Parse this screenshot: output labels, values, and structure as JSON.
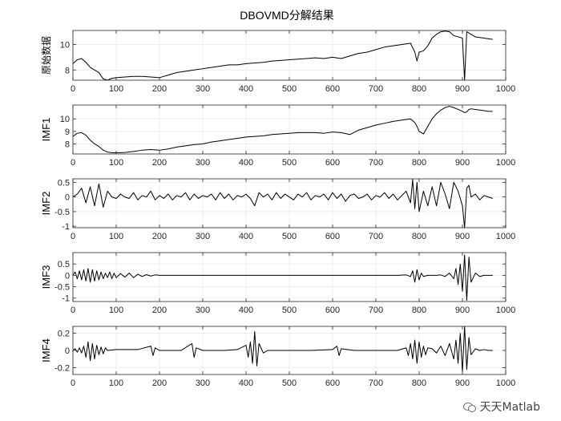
{
  "figure": {
    "title": "DBOVMD分解结果"
  },
  "watermark": {
    "text": "天天Matlab"
  },
  "chart_data": [
    {
      "type": "line",
      "ylabel": "原始数据",
      "xlim": [
        0,
        1000
      ],
      "ylim": [
        7.2,
        11.1
      ],
      "yticks": [
        8,
        10
      ],
      "xticks": [
        0,
        100,
        200,
        300,
        400,
        500,
        600,
        700,
        800,
        900,
        1000
      ],
      "grid": true,
      "color": "#000000",
      "x": [
        0,
        10,
        20,
        30,
        40,
        50,
        60,
        70,
        80,
        90,
        100,
        120,
        140,
        160,
        180,
        200,
        220,
        240,
        260,
        280,
        300,
        320,
        340,
        360,
        380,
        400,
        420,
        440,
        460,
        480,
        500,
        520,
        540,
        560,
        580,
        600,
        620,
        640,
        660,
        680,
        700,
        720,
        740,
        760,
        780,
        790,
        795,
        800,
        810,
        820,
        830,
        840,
        850,
        860,
        870,
        880,
        890,
        900,
        905,
        910,
        915,
        920,
        930,
        940,
        950,
        960,
        970
      ],
      "y": [
        8.5,
        8.8,
        8.9,
        8.6,
        8.2,
        8.0,
        7.8,
        7.3,
        7.2,
        7.35,
        7.4,
        7.45,
        7.5,
        7.5,
        7.45,
        7.4,
        7.6,
        7.8,
        7.9,
        8.0,
        8.1,
        8.2,
        8.3,
        8.4,
        8.4,
        8.5,
        8.55,
        8.6,
        8.7,
        8.75,
        8.8,
        8.85,
        8.9,
        8.95,
        8.9,
        9.0,
        8.9,
        9.1,
        9.3,
        9.4,
        9.6,
        9.8,
        9.9,
        10.0,
        10.1,
        9.4,
        8.7,
        9.4,
        9.5,
        9.9,
        10.5,
        10.8,
        11.0,
        11.05,
        11.0,
        10.7,
        10.6,
        10.5,
        7.2,
        11.0,
        10.9,
        10.8,
        10.6,
        10.55,
        10.5,
        10.45,
        10.4
      ]
    },
    {
      "type": "line",
      "ylabel": "IMF1",
      "xlim": [
        0,
        1000
      ],
      "ylim": [
        7.2,
        11.1
      ],
      "yticks": [
        8,
        9,
        10
      ],
      "xticks": [
        0,
        100,
        200,
        300,
        400,
        500,
        600,
        700,
        800,
        900,
        1000
      ],
      "grid": true,
      "color": "#000000",
      "x": [
        0,
        10,
        20,
        30,
        40,
        50,
        60,
        70,
        80,
        90,
        100,
        120,
        140,
        160,
        180,
        200,
        220,
        240,
        260,
        280,
        300,
        320,
        340,
        360,
        380,
        400,
        420,
        440,
        460,
        480,
        500,
        520,
        540,
        560,
        580,
        600,
        620,
        640,
        660,
        680,
        700,
        720,
        740,
        760,
        780,
        790,
        795,
        800,
        810,
        820,
        830,
        840,
        850,
        860,
        870,
        880,
        890,
        900,
        905,
        910,
        915,
        920,
        930,
        940,
        950,
        960,
        970
      ],
      "y": [
        8.6,
        8.85,
        8.9,
        8.7,
        8.3,
        8.0,
        7.8,
        7.5,
        7.35,
        7.3,
        7.3,
        7.32,
        7.4,
        7.5,
        7.55,
        7.5,
        7.6,
        7.75,
        7.85,
        7.95,
        8.0,
        8.15,
        8.25,
        8.35,
        8.45,
        8.55,
        8.6,
        8.65,
        8.75,
        8.8,
        8.85,
        8.9,
        8.9,
        8.9,
        8.85,
        8.95,
        8.9,
        8.75,
        9.1,
        9.3,
        9.5,
        9.65,
        9.8,
        9.9,
        10.0,
        9.7,
        9.4,
        9.0,
        8.8,
        9.4,
        10.0,
        10.4,
        10.7,
        10.9,
        11.0,
        10.9,
        10.75,
        10.6,
        10.5,
        10.55,
        10.75,
        10.8,
        10.75,
        10.7,
        10.65,
        10.6,
        10.6
      ]
    },
    {
      "type": "line",
      "ylabel": "IMF2",
      "xlim": [
        0,
        1000
      ],
      "ylim": [
        -1.05,
        0.62
      ],
      "yticks": [
        -1,
        -0.5,
        0,
        0.5
      ],
      "xticks": [
        0,
        100,
        200,
        300,
        400,
        500,
        600,
        700,
        800,
        900,
        1000
      ],
      "grid": true,
      "color": "#000000",
      "x": [
        0,
        10,
        20,
        30,
        40,
        50,
        60,
        70,
        80,
        90,
        100,
        110,
        120,
        130,
        140,
        150,
        160,
        170,
        180,
        190,
        200,
        210,
        220,
        230,
        240,
        250,
        260,
        270,
        280,
        290,
        300,
        310,
        320,
        330,
        340,
        350,
        360,
        370,
        380,
        390,
        400,
        410,
        420,
        430,
        440,
        450,
        460,
        470,
        480,
        490,
        500,
        510,
        520,
        530,
        540,
        550,
        560,
        570,
        580,
        590,
        600,
        610,
        620,
        630,
        640,
        650,
        660,
        670,
        680,
        690,
        700,
        710,
        720,
        730,
        740,
        750,
        760,
        770,
        780,
        785,
        790,
        795,
        800,
        810,
        820,
        830,
        840,
        850,
        860,
        870,
        880,
        890,
        900,
        905,
        910,
        915,
        920,
        930,
        940,
        950,
        960,
        970
      ],
      "y": [
        0,
        0.1,
        0.3,
        -0.2,
        0.35,
        -0.3,
        0.45,
        -0.35,
        0.2,
        0,
        -0.05,
        0.1,
        0,
        -0.05,
        0.15,
        -0.1,
        0.05,
        0,
        0.2,
        -0.1,
        0.05,
        -0.05,
        0.1,
        -0.1,
        0.05,
        0,
        0.15,
        -0.1,
        0.1,
        -0.05,
        0.05,
        0,
        0.1,
        -0.1,
        0.15,
        -0.05,
        0.1,
        -0.1,
        0.05,
        0,
        0.1,
        -0.05,
        -0.3,
        0.15,
        0,
        0.1,
        -0.1,
        0.15,
        -0.05,
        0.1,
        0,
        -0.1,
        0.1,
        0,
        0.15,
        -0.1,
        0.05,
        0,
        0.1,
        -0.1,
        0.15,
        -0.05,
        0.1,
        -0.15,
        0.05,
        0.1,
        -0.05,
        0,
        0.1,
        -0.1,
        0.05,
        0,
        0.15,
        -0.05,
        0.1,
        -0.1,
        0.05,
        0.2,
        -0.2,
        0.6,
        -0.4,
        0.5,
        -0.5,
        0.2,
        -0.3,
        0.35,
        -0.3,
        0.5,
        0.1,
        -0.4,
        0.5,
        0.2,
        -0.3,
        -1.05,
        0.3,
        0.4,
        0,
        0.1,
        -0.1,
        0.05,
        0,
        -0.05
      ]
    },
    {
      "type": "line",
      "ylabel": "IMF3",
      "xlim": [
        0,
        1000
      ],
      "ylim": [
        -1.15,
        1.0
      ],
      "yticks": [
        -1,
        -0.5,
        0,
        0.5
      ],
      "xticks": [
        0,
        100,
        200,
        300,
        400,
        500,
        600,
        700,
        800,
        900,
        1000
      ],
      "grid": true,
      "color": "#000000",
      "x": [
        0,
        5,
        10,
        15,
        20,
        25,
        30,
        35,
        40,
        45,
        50,
        55,
        60,
        65,
        70,
        75,
        80,
        85,
        90,
        95,
        100,
        110,
        120,
        130,
        140,
        150,
        160,
        170,
        180,
        190,
        200,
        250,
        300,
        350,
        400,
        450,
        500,
        550,
        600,
        650,
        700,
        750,
        770,
        780,
        785,
        790,
        795,
        800,
        805,
        810,
        820,
        830,
        840,
        850,
        860,
        870,
        880,
        885,
        890,
        895,
        900,
        905,
        910,
        915,
        920,
        930,
        940,
        950,
        960,
        970
      ],
      "y": [
        0,
        0.15,
        -0.15,
        0.2,
        -0.2,
        0.25,
        -0.25,
        0.3,
        -0.3,
        0.25,
        -0.25,
        0.2,
        -0.2,
        0.15,
        -0.15,
        0.1,
        -0.1,
        0.15,
        -0.15,
        0.1,
        -0.1,
        0.08,
        -0.08,
        0.1,
        -0.1,
        0.05,
        -0.05,
        0.03,
        -0.03,
        0.02,
        0,
        0,
        0,
        0,
        0,
        0,
        0,
        0,
        0,
        0,
        0,
        0,
        0.02,
        -0.05,
        0.2,
        -0.3,
        0.25,
        -0.2,
        0.1,
        -0.05,
        0,
        0,
        0,
        0.02,
        -0.05,
        0.1,
        -0.15,
        0.3,
        -0.4,
        0.5,
        -0.7,
        0.9,
        -1.1,
        0.8,
        -0.3,
        0.1,
        -0.05,
        0,
        0,
        0
      ]
    },
    {
      "type": "line",
      "ylabel": "IMF4",
      "xlim": [
        0,
        1000
      ],
      "ylim": [
        -0.28,
        0.28
      ],
      "yticks": [
        -0.2,
        0,
        0.2
      ],
      "xticks": [
        0,
        100,
        200,
        300,
        400,
        500,
        600,
        700,
        800,
        900,
        1000
      ],
      "grid": true,
      "color": "#000000",
      "x": [
        0,
        5,
        10,
        15,
        20,
        25,
        30,
        35,
        40,
        45,
        50,
        55,
        60,
        65,
        70,
        75,
        80,
        100,
        150,
        180,
        185,
        190,
        200,
        250,
        275,
        280,
        285,
        300,
        350,
        380,
        400,
        405,
        410,
        415,
        420,
        425,
        430,
        440,
        450,
        500,
        550,
        600,
        610,
        615,
        620,
        650,
        700,
        750,
        770,
        775,
        780,
        785,
        790,
        795,
        800,
        805,
        810,
        815,
        820,
        830,
        840,
        850,
        860,
        870,
        880,
        885,
        890,
        895,
        900,
        905,
        910,
        915,
        920,
        930,
        940,
        950,
        960,
        970
      ],
      "y": [
        0,
        0.02,
        -0.02,
        0.03,
        -0.03,
        0.05,
        -0.08,
        0.1,
        -0.12,
        0.08,
        -0.1,
        0.06,
        -0.05,
        0.04,
        -0.04,
        0.03,
        0,
        0.01,
        0.01,
        0.05,
        -0.06,
        0.03,
        0,
        0,
        0.08,
        -0.08,
        0.03,
        0,
        0,
        0.01,
        0.06,
        -0.08,
        0.1,
        -0.15,
        0.22,
        -0.18,
        0.08,
        -0.03,
        0,
        0,
        0,
        0.01,
        0.05,
        -0.06,
        0.02,
        0,
        0,
        0,
        0.03,
        -0.06,
        0.08,
        -0.1,
        0.12,
        -0.15,
        0.1,
        -0.08,
        0.05,
        -0.05,
        0.03,
        0.02,
        -0.03,
        0.05,
        -0.06,
        0.08,
        -0.1,
        0.12,
        -0.15,
        0.2,
        -0.25,
        0.28,
        -0.22,
        0.15,
        -0.05,
        0.02,
        0,
        0.01,
        0,
        0
      ]
    }
  ]
}
